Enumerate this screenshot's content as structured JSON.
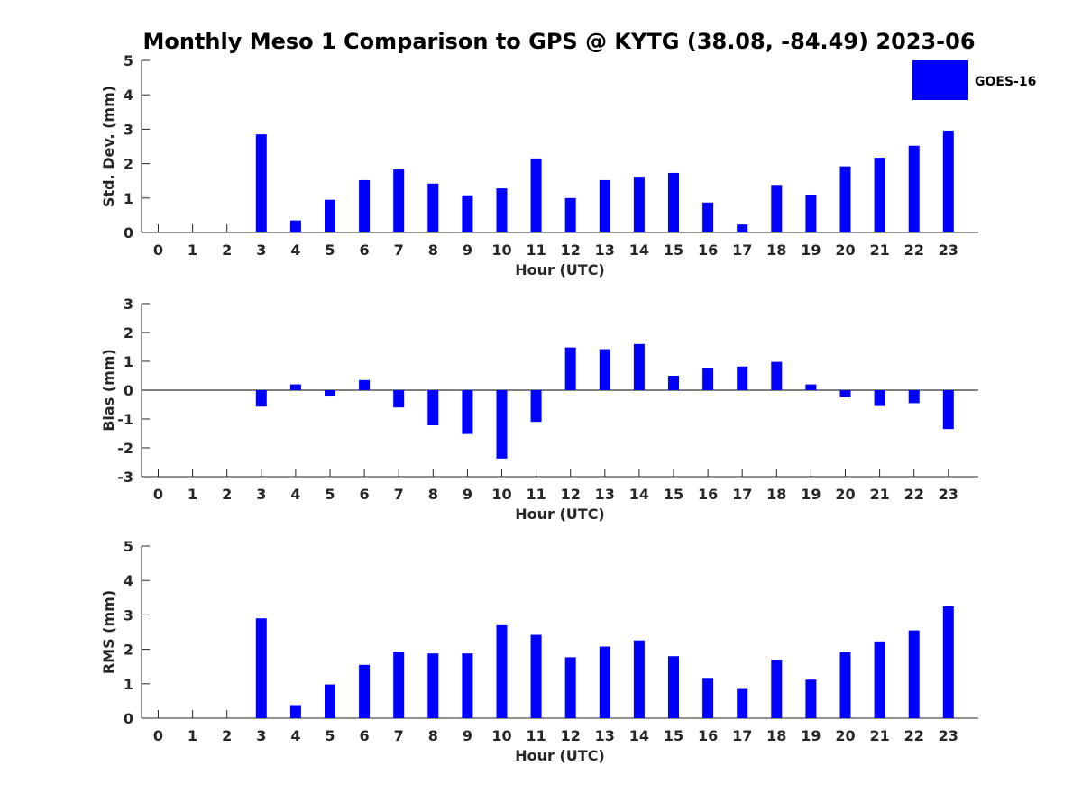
{
  "title": "Monthly Meso 1 Comparison to GPS @ KYTG (38.08, -84.49) 2023-06",
  "legend": {
    "label": "GOES-16",
    "color": "#0000ff",
    "placement": "top-right"
  },
  "chart_data": [
    {
      "type": "bar",
      "xlabel": "Hour (UTC)",
      "ylabel": "Std. Dev. (mm)",
      "ylim": [
        0,
        5
      ],
      "yticks": [
        "0",
        "1",
        "2",
        "3",
        "4",
        "5"
      ],
      "categories": [
        "0",
        "1",
        "2",
        "3",
        "4",
        "5",
        "6",
        "7",
        "8",
        "9",
        "10",
        "11",
        "12",
        "13",
        "14",
        "15",
        "16",
        "17",
        "18",
        "19",
        "20",
        "21",
        "22",
        "23"
      ],
      "series": [
        {
          "name": "GOES-16",
          "color": "#0000ff",
          "values": [
            null,
            null,
            null,
            2.85,
            0.35,
            0.95,
            1.52,
            1.83,
            1.42,
            1.08,
            1.28,
            2.15,
            1.0,
            1.52,
            1.62,
            1.73,
            0.87,
            0.23,
            1.38,
            1.1,
            1.92,
            2.17,
            2.52,
            2.96
          ]
        }
      ]
    },
    {
      "type": "bar",
      "xlabel": "Hour (UTC)",
      "ylabel": "Bias (mm)",
      "ylim": [
        -3,
        3
      ],
      "yticks": [
        "-3",
        "-2",
        "-1",
        "0",
        "1",
        "2",
        "3"
      ],
      "categories": [
        "0",
        "1",
        "2",
        "3",
        "4",
        "5",
        "6",
        "7",
        "8",
        "9",
        "10",
        "11",
        "12",
        "13",
        "14",
        "15",
        "16",
        "17",
        "18",
        "19",
        "20",
        "21",
        "22",
        "23"
      ],
      "series": [
        {
          "name": "GOES-16",
          "color": "#0000ff",
          "values": [
            null,
            null,
            null,
            -0.57,
            0.2,
            -0.22,
            0.35,
            -0.6,
            -1.22,
            -1.52,
            -2.37,
            -1.1,
            1.48,
            1.42,
            1.6,
            0.5,
            0.78,
            0.82,
            0.98,
            0.2,
            -0.25,
            -0.55,
            -0.45,
            -1.35
          ]
        }
      ]
    },
    {
      "type": "bar",
      "xlabel": "Hour (UTC)",
      "ylabel": "RMS (mm)",
      "ylim": [
        0,
        5
      ],
      "yticks": [
        "0",
        "1",
        "2",
        "3",
        "4",
        "5"
      ],
      "categories": [
        "0",
        "1",
        "2",
        "3",
        "4",
        "5",
        "6",
        "7",
        "8",
        "9",
        "10",
        "11",
        "12",
        "13",
        "14",
        "15",
        "16",
        "17",
        "18",
        "19",
        "20",
        "21",
        "22",
        "23"
      ],
      "series": [
        {
          "name": "GOES-16",
          "color": "#0000ff",
          "values": [
            null,
            null,
            null,
            2.9,
            0.38,
            0.98,
            1.55,
            1.93,
            1.88,
            1.88,
            2.7,
            2.42,
            1.77,
            2.08,
            2.26,
            1.8,
            1.17,
            0.85,
            1.7,
            1.12,
            1.92,
            2.23,
            2.55,
            3.25
          ]
        }
      ]
    }
  ]
}
